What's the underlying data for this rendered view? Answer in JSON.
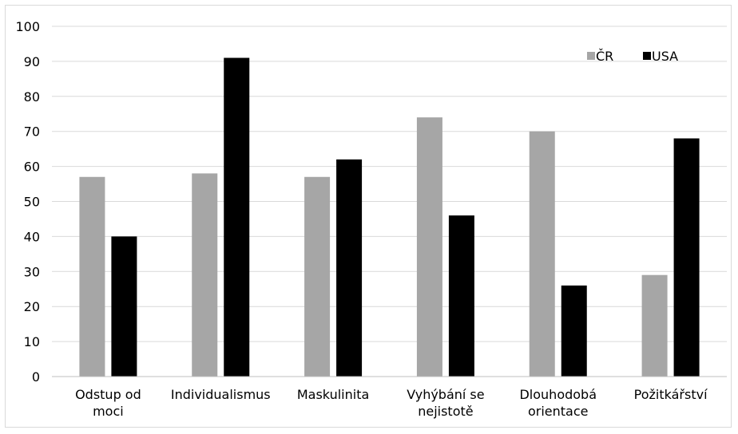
{
  "chart_data": {
    "type": "bar",
    "categories": [
      [
        "Odstup od",
        "moci"
      ],
      [
        "Individualismus"
      ],
      [
        "Maskulinita"
      ],
      [
        "Vyhýbání se",
        "nejistotě"
      ],
      [
        "Dlouhodobá",
        "orientace"
      ],
      [
        "Požitkářství"
      ]
    ],
    "series": [
      {
        "name": "ČR",
        "color": "#a6a6a6",
        "values": [
          57,
          58,
          57,
          74,
          70,
          29
        ]
      },
      {
        "name": "USA",
        "color": "#000000",
        "values": [
          40,
          91,
          62,
          46,
          26,
          68
        ]
      }
    ],
    "ylim": [
      0,
      100
    ],
    "yticks": [
      0,
      10,
      20,
      30,
      40,
      50,
      60,
      70,
      80,
      90,
      100
    ],
    "grid": true,
    "legend_position": "top-right",
    "title": "",
    "xlabel": "",
    "ylabel": ""
  }
}
